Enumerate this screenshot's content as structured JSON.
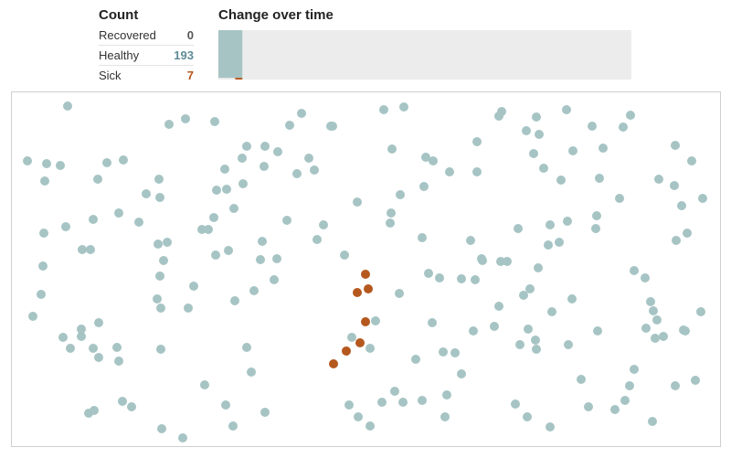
{
  "count_panel": {
    "title": "Count",
    "rows": [
      {
        "label": "Recovered",
        "value": "0",
        "color": "#555555"
      },
      {
        "label": "Healthy",
        "value": "193",
        "color": "#5e8a96"
      },
      {
        "label": "Sick",
        "value": "7",
        "color": "#b5541a"
      }
    ]
  },
  "time_panel": {
    "title": "Change over time"
  },
  "colors": {
    "healthy": "#a7c4c4",
    "sick": "#b5581e",
    "recovered": "#6f6f6f",
    "track": "#ececec"
  },
  "chart_data": {
    "type": "area",
    "title": "Change over time",
    "series": [
      {
        "name": "Recovered",
        "values": [
          0
        ]
      },
      {
        "name": "Healthy",
        "values": [
          193
        ]
      },
      {
        "name": "Sick",
        "values": [
          7
        ]
      }
    ],
    "total": 200,
    "elapsed_fraction": 0.058
  }
}
